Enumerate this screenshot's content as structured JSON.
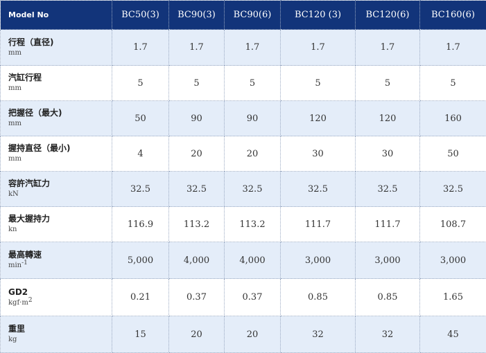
{
  "header": {
    "label": "Model No",
    "columns": [
      "BC50(3)",
      "BC90(3)",
      "BC90(6)",
      "BC120 (3)",
      "BC120(6)",
      "BC160(6)"
    ]
  },
  "rows": [
    {
      "name": "行程（直径)",
      "unit": "mm",
      "unit_sup": "",
      "values": [
        "1.7",
        "1.7",
        "1.7",
        "1.7",
        "1.7",
        "1.7"
      ]
    },
    {
      "name": "汽缸行程",
      "unit": "mm",
      "unit_sup": "",
      "values": [
        "5",
        "5",
        "5",
        "5",
        "5",
        "5"
      ]
    },
    {
      "name": "把握径（最大)",
      "unit": "mm",
      "unit_sup": "",
      "values": [
        "50",
        "90",
        "90",
        "120",
        "120",
        "160"
      ]
    },
    {
      "name": "握持直径（最小)",
      "unit": "mm",
      "unit_sup": "",
      "values": [
        "4",
        "20",
        "20",
        "30",
        "30",
        "50"
      ]
    },
    {
      "name": "容許汽缸力",
      "unit": "kN",
      "unit_sup": "",
      "values": [
        "32.5",
        "32.5",
        "32.5",
        "32.5",
        "32.5",
        "32.5"
      ]
    },
    {
      "name": "最大握持力",
      "unit": "kn",
      "unit_sup": "",
      "values": [
        "116.9",
        "113.2",
        "113.2",
        "111.7",
        "111.7",
        "108.7"
      ]
    },
    {
      "name": "最高轉速",
      "unit": "min",
      "unit_sup": "-1",
      "values": [
        "5,000",
        "4,000",
        "4,000",
        "3,000",
        "3,000",
        "3,000"
      ]
    },
    {
      "name": "GD2",
      "unit": "kgf·m",
      "unit_sup": "2",
      "values": [
        "0.21",
        "0.37",
        "0.37",
        "0.85",
        "0.85",
        "1.65"
      ]
    },
    {
      "name": "重里",
      "unit": "kg",
      "unit_sup": "",
      "values": [
        "15",
        "20",
        "20",
        "32",
        "32",
        "45"
      ]
    }
  ],
  "colors": {
    "header_bg": "#12347a",
    "row_blue": "#e4edf9",
    "row_white": "#ffffff"
  }
}
